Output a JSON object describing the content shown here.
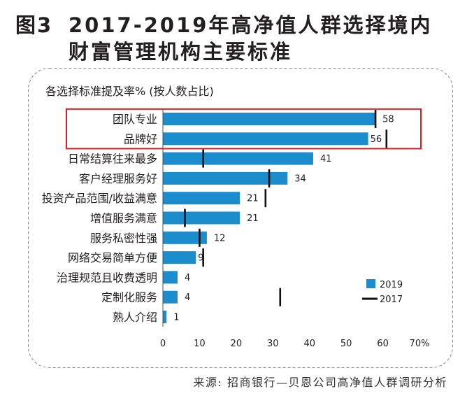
{
  "colors": {
    "bar_2019": "#1c8dcc",
    "marker_2017": "#111111",
    "highlight_box": "#d5202a",
    "frame_dash": "#8c8c8c",
    "text": "#231f20"
  },
  "source": "来源: 招商银行—贝恩公司高净值人群调研分析",
  "chart_data": {
    "type": "bar",
    "orientation": "horizontal",
    "figure_label": "图3",
    "title": "2017-2019年高净值人群选择境内\n财富管理机构主要标准",
    "subtitle": "各选择标准提及率% (按人数占比)",
    "categories": [
      "团队专业",
      "品牌好",
      "日常结算往来最多",
      "客户经理服务好",
      "投资产品范围/收益满意",
      "增值服务满意",
      "服务私密性强",
      "网络交易简单方便",
      "治理规范且收费透明",
      "定制化服务",
      "熟人介绍"
    ],
    "series": [
      {
        "name": "2019",
        "type": "bar",
        "values": [
          58,
          56,
          41,
          34,
          21,
          21,
          12,
          9,
          4,
          4,
          1
        ]
      },
      {
        "name": "2017",
        "type": "marker",
        "values": [
          58,
          61,
          11,
          29,
          28,
          6,
          10,
          11,
          null,
          32,
          null
        ]
      }
    ],
    "xlim": [
      0,
      70
    ],
    "xticks": [
      0,
      10,
      20,
      30,
      40,
      50,
      60,
      70
    ],
    "xtick_labels": [
      "0",
      "10",
      "20",
      "30",
      "40",
      "50",
      "60",
      "70%"
    ],
    "grid": false,
    "legend_position": "bottom-right",
    "highlighted_rows": [
      0,
      1
    ]
  }
}
